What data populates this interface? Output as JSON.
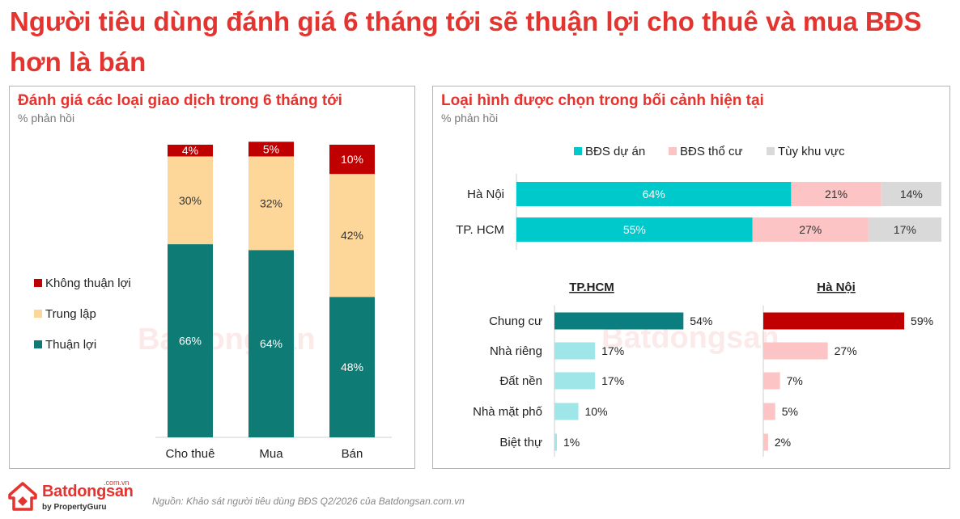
{
  "title": "Người tiêu dùng đánh giá 6 tháng tới sẽ thuận lợi cho thuê và mua BĐS hơn là bán",
  "source": "Nguồn: Khảo sát người tiêu dùng BĐS Q2/2026 của Batdongsan.com.vn",
  "logo": {
    "name": "Batdongsan",
    "tld": ".com.vn",
    "by": "by PropertyGuru"
  },
  "watermark": "Batdongsan",
  "colors": {
    "accent": "#e3342f",
    "teal": "#0e7b74",
    "peach": "#fdd79a",
    "darkred": "#c00000",
    "cyan": "#00c9cc",
    "pink": "#fcc4c4",
    "grey": "#d9d9d9",
    "lightcyan": "#9ee6e8",
    "deepteal": "#0b7f80"
  },
  "chart_data": [
    {
      "type": "bar",
      "stacked": true,
      "title": "Đánh giá các loại giao dịch trong 6 tháng tới",
      "subtitle": "% phản hồi",
      "categories": [
        "Cho thuê",
        "Mua",
        "Bán"
      ],
      "series": [
        {
          "name": "Thuận lợi",
          "values": [
            66,
            64,
            48
          ],
          "color": "#0e7b74"
        },
        {
          "name": "Trung lập",
          "values": [
            30,
            32,
            42
          ],
          "color": "#fdd79a"
        },
        {
          "name": "Không thuận lợi",
          "values": [
            4,
            5,
            10
          ],
          "color": "#c00000"
        }
      ],
      "legend_order": [
        "Không thuận lợi",
        "Trung lập",
        "Thuận lợi"
      ],
      "legend": "left",
      "ylim": [
        0,
        100
      ],
      "grid": false
    },
    {
      "type": "bar",
      "orientation": "horizontal",
      "stacked": true,
      "title": "Loại hình được chọn trong bối cảnh hiện tại",
      "subtitle": "% phản hồi",
      "categories": [
        "Hà Nội",
        "TP. HCM"
      ],
      "series": [
        {
          "name": "BĐS dự án",
          "values": [
            64,
            55
          ],
          "color": "#00c9cc"
        },
        {
          "name": "BĐS thổ cư",
          "values": [
            21,
            27
          ],
          "color": "#fcc4c4"
        },
        {
          "name": "Tùy  khu vực",
          "values": [
            14,
            17
          ],
          "color": "#d9d9d9"
        }
      ],
      "legend": "top",
      "grid": false
    },
    {
      "type": "bar",
      "orientation": "horizontal",
      "title": "TP.HCM",
      "categories": [
        "Chung cư",
        "Nhà riêng",
        "Đất nền",
        "Nhà mặt phố",
        "Biệt thự"
      ],
      "values": [
        54,
        17,
        17,
        10,
        1
      ],
      "colors": [
        "#0b7f80",
        "#9ee6e8",
        "#9ee6e8",
        "#9ee6e8",
        "#9ee6e8"
      ],
      "xlim": [
        0,
        100
      ],
      "grid": false
    },
    {
      "type": "bar",
      "orientation": "horizontal",
      "title": "Hà Nội",
      "categories": [
        "Chung cư",
        "Nhà riêng",
        "Đất nền",
        "Nhà mặt phố",
        "Biệt thự"
      ],
      "values": [
        59,
        27,
        7,
        5,
        2
      ],
      "colors": [
        "#c00000",
        "#fcc4c4",
        "#fcc4c4",
        "#fcc4c4",
        "#fcc4c4"
      ],
      "xlim": [
        0,
        100
      ],
      "grid": false
    }
  ]
}
